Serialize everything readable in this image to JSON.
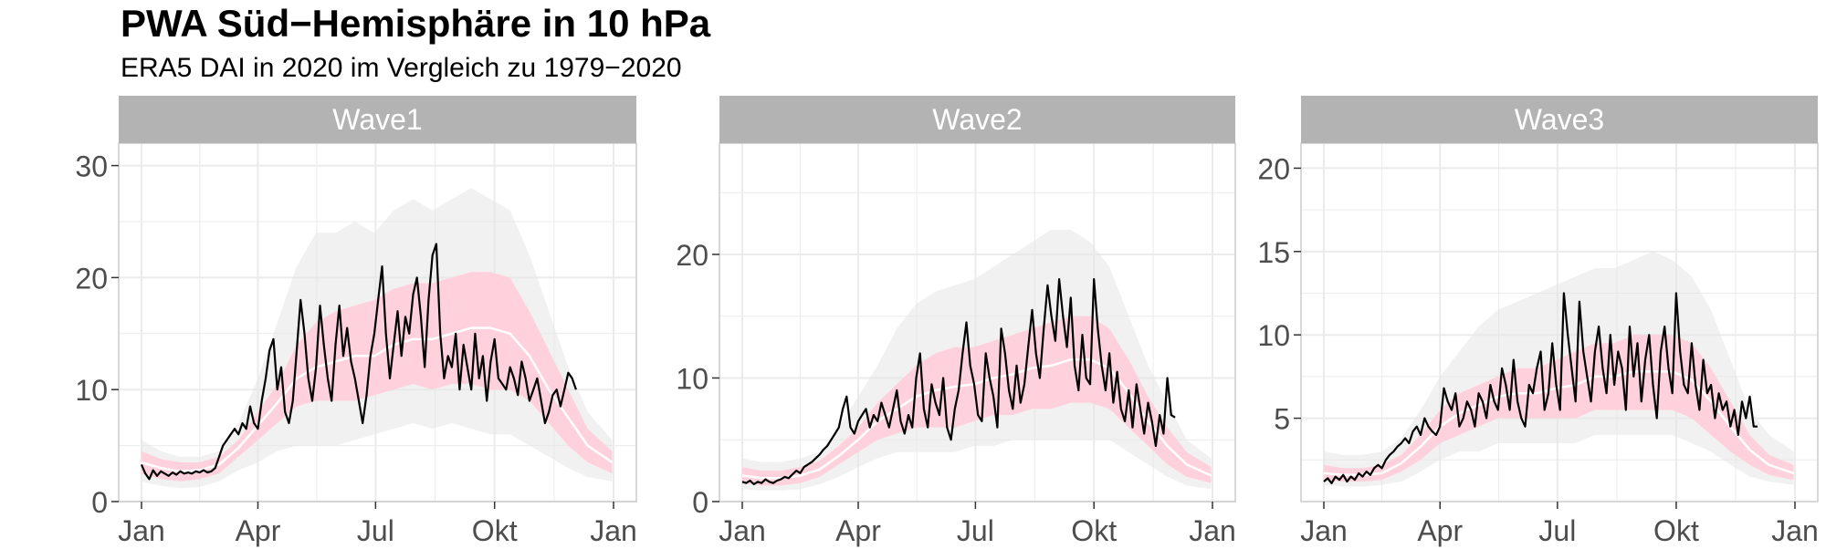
{
  "title": "PWA Süd−Hemisphäre in 10 hPa",
  "subtitle": "ERA5 DAI in 2020 im Vergleich zu 1979−2020",
  "colors": {
    "strip": "#b3b3b3",
    "strip_text": "#ffffff",
    "band": "#ffd1dc",
    "hist": "#e6e6e6",
    "mean": "#ffffff",
    "line_2020": "#000000",
    "grid": "#ebebeb",
    "panel_border": "#cccccc"
  },
  "chart_data": [
    {
      "type": "line",
      "facet": "Wave1",
      "x_ticks": [
        "Jan",
        "Apr",
        "Jul",
        "Okt",
        "Jan"
      ],
      "x_tick_days": [
        0,
        90,
        181,
        273,
        365
      ],
      "y_ticks": [
        0,
        10,
        20,
        30
      ],
      "ylim": [
        0,
        32
      ],
      "grid": true,
      "band_days": [
        0,
        15,
        30,
        45,
        60,
        75,
        90,
        105,
        120,
        135,
        150,
        165,
        180,
        195,
        210,
        225,
        240,
        255,
        270,
        285,
        300,
        315,
        330,
        345,
        364
      ],
      "band_lower": [
        2.5,
        2.0,
        1.8,
        2.0,
        2.5,
        4.0,
        5.5,
        7.0,
        8.5,
        9.0,
        9.0,
        9.0,
        9.5,
        10.0,
        10.5,
        10.0,
        10.5,
        10.5,
        10.0,
        10.0,
        9.0,
        7.0,
        5.0,
        3.5,
        2.5
      ],
      "band_upper": [
        4.5,
        3.8,
        3.5,
        3.5,
        4.0,
        5.5,
        8.0,
        10.5,
        14.0,
        16.0,
        17.0,
        17.5,
        18.0,
        19.0,
        19.5,
        19.5,
        20.0,
        20.5,
        20.5,
        20.0,
        17.0,
        13.5,
        10.0,
        6.5,
        4.5
      ],
      "mean": [
        3.5,
        3.0,
        2.7,
        2.8,
        3.3,
        4.8,
        6.8,
        8.8,
        11.0,
        12.0,
        12.5,
        13.0,
        13.0,
        14.0,
        14.5,
        14.5,
        15.0,
        15.5,
        15.5,
        15.0,
        13.0,
        10.0,
        7.5,
        5.0,
        3.5
      ],
      "hist_max": [
        5.5,
        4.5,
        4.0,
        4.0,
        4.5,
        7.0,
        11.0,
        16.0,
        21.0,
        24.0,
        24.0,
        25.0,
        24.0,
        26.0,
        27.0,
        26.0,
        27.0,
        28.0,
        27.0,
        26.0,
        22.0,
        17.0,
        12.0,
        8.0,
        5.5
      ],
      "hist_min": [
        1.8,
        1.4,
        1.2,
        1.3,
        1.8,
        2.8,
        3.5,
        4.5,
        5.0,
        5.0,
        5.0,
        5.5,
        6.0,
        6.5,
        7.0,
        6.5,
        7.0,
        6.5,
        6.0,
        6.0,
        5.0,
        4.0,
        3.0,
        2.2,
        1.8
      ],
      "series_2020": {
        "days": [
          0,
          3,
          6,
          9,
          12,
          15,
          18,
          21,
          24,
          27,
          30,
          33,
          36,
          39,
          42,
          45,
          48,
          51,
          54,
          57,
          60,
          63,
          66,
          69,
          72,
          75,
          78,
          81,
          84,
          87,
          90,
          93,
          96,
          99,
          102,
          105,
          108,
          111,
          114,
          117,
          120,
          123,
          126,
          129,
          132,
          135,
          138,
          141,
          144,
          147,
          150,
          153,
          156,
          159,
          162,
          165,
          168,
          171,
          174,
          177,
          180,
          183,
          186,
          189,
          192,
          195,
          198,
          201,
          204,
          207,
          210,
          213,
          216,
          219,
          222,
          225,
          228,
          231,
          234,
          237,
          240,
          243,
          246,
          249,
          252,
          255,
          258,
          261,
          264,
          267,
          270,
          273,
          276,
          279,
          282,
          285,
          288,
          291,
          294,
          297,
          300,
          303,
          306,
          309,
          312,
          315,
          318,
          321,
          324,
          327,
          330,
          333,
          336
        ],
        "values": [
          3.3,
          2.5,
          2.0,
          2.8,
          2.3,
          2.7,
          2.5,
          2.3,
          2.6,
          2.4,
          2.7,
          2.5,
          2.6,
          2.5,
          2.7,
          2.6,
          2.8,
          2.6,
          2.7,
          3.0,
          4.0,
          5.0,
          5.5,
          6.0,
          6.5,
          6.0,
          7.0,
          6.5,
          8.5,
          7.0,
          6.5,
          9.0,
          11.0,
          13.5,
          14.5,
          10.0,
          12.0,
          8.0,
          7.0,
          9.0,
          13.5,
          18.0,
          15.0,
          11.0,
          9.0,
          12.0,
          17.5,
          14.0,
          11.0,
          9.0,
          14.0,
          17.5,
          13.0,
          15.5,
          12.5,
          11.0,
          9.0,
          7.0,
          9.5,
          13.0,
          15.0,
          18.0,
          21.0,
          15.0,
          11.0,
          14.0,
          17.0,
          13.0,
          16.5,
          15.0,
          18.5,
          20.0,
          16.5,
          12.0,
          18.0,
          22.0,
          23.0,
          15.0,
          11.0,
          13.0,
          12.0,
          15.0,
          10.0,
          14.0,
          12.0,
          10.0,
          15.0,
          11.0,
          13.0,
          9.0,
          12.5,
          14.5,
          11.0,
          10.5,
          10.0,
          12.0,
          11.0,
          9.5,
          12.5,
          11.0,
          9.0,
          10.0,
          11.0,
          9.0,
          7.0,
          8.0,
          9.5,
          10.0,
          8.5,
          10.0,
          11.5,
          11.0,
          10.0
        ]
      }
    },
    {
      "type": "line",
      "facet": "Wave2",
      "x_ticks": [
        "Jan",
        "Apr",
        "Jul",
        "Okt",
        "Jan"
      ],
      "x_tick_days": [
        0,
        90,
        181,
        273,
        365
      ],
      "y_ticks": [
        0,
        10,
        20
      ],
      "ylim": [
        0,
        29
      ],
      "grid": true,
      "band_days": [
        0,
        15,
        30,
        45,
        60,
        75,
        90,
        105,
        120,
        135,
        150,
        165,
        180,
        195,
        210,
        225,
        240,
        255,
        270,
        285,
        300,
        315,
        330,
        345,
        364
      ],
      "band_lower": [
        1.5,
        1.3,
        1.3,
        1.5,
        2.0,
        3.0,
        4.0,
        5.0,
        5.5,
        6.0,
        6.0,
        6.0,
        6.5,
        7.0,
        7.0,
        7.5,
        7.5,
        8.0,
        8.0,
        7.5,
        6.0,
        4.5,
        3.0,
        2.0,
        1.5
      ],
      "band_upper": [
        2.8,
        2.5,
        2.5,
        2.8,
        3.3,
        4.5,
        6.0,
        8.0,
        9.5,
        11.0,
        12.0,
        12.5,
        12.5,
        13.0,
        13.5,
        14.0,
        14.5,
        15.0,
        15.0,
        14.0,
        11.5,
        8.5,
        6.0,
        4.0,
        2.8
      ],
      "mean": [
        2.1,
        1.9,
        1.9,
        2.1,
        2.6,
        3.7,
        5.0,
        6.5,
        7.5,
        8.5,
        9.0,
        9.3,
        9.5,
        10.0,
        10.3,
        10.8,
        11.0,
        11.5,
        11.5,
        10.8,
        8.8,
        6.5,
        4.5,
        3.0,
        2.1
      ],
      "hist_max": [
        3.5,
        3.2,
        3.2,
        3.5,
        4.0,
        6.0,
        8.5,
        11.0,
        14.0,
        16.0,
        17.0,
        17.5,
        18.0,
        19.0,
        20.0,
        21.0,
        22.0,
        22.0,
        21.0,
        19.0,
        15.0,
        11.0,
        8.0,
        5.0,
        3.5
      ],
      "hist_min": [
        1.0,
        0.9,
        0.9,
        1.0,
        1.4,
        2.0,
        2.8,
        3.5,
        4.0,
        4.0,
        4.0,
        4.0,
        4.5,
        4.5,
        5.0,
        5.0,
        5.0,
        5.0,
        5.0,
        5.0,
        4.0,
        3.0,
        2.0,
        1.3,
        1.0
      ],
      "series_2020": {
        "days": [
          0,
          3,
          6,
          9,
          12,
          15,
          18,
          21,
          24,
          27,
          30,
          33,
          36,
          39,
          42,
          45,
          48,
          51,
          54,
          57,
          60,
          63,
          66,
          69,
          72,
          75,
          78,
          81,
          84,
          87,
          90,
          93,
          96,
          99,
          102,
          105,
          108,
          111,
          114,
          117,
          120,
          123,
          126,
          129,
          132,
          135,
          138,
          141,
          144,
          147,
          150,
          153,
          156,
          159,
          162,
          165,
          168,
          171,
          174,
          177,
          180,
          183,
          186,
          189,
          192,
          195,
          198,
          201,
          204,
          207,
          210,
          213,
          216,
          219,
          222,
          225,
          228,
          231,
          234,
          237,
          240,
          243,
          246,
          249,
          252,
          255,
          258,
          261,
          264,
          267,
          270,
          273,
          276,
          279,
          282,
          285,
          288,
          291,
          294,
          297,
          300,
          303,
          306,
          309,
          312,
          315,
          318,
          321,
          324,
          327,
          330,
          333,
          336
        ],
        "values": [
          1.6,
          1.5,
          1.7,
          1.4,
          1.6,
          1.5,
          1.8,
          1.6,
          1.5,
          1.7,
          1.8,
          2.0,
          1.9,
          2.2,
          2.5,
          2.3,
          2.8,
          3.0,
          3.2,
          3.5,
          3.8,
          4.2,
          4.5,
          5.0,
          5.5,
          6.0,
          7.5,
          8.5,
          6.0,
          5.5,
          6.5,
          7.0,
          7.5,
          6.0,
          7.0,
          6.5,
          8.0,
          7.0,
          6.0,
          7.5,
          9.0,
          6.5,
          5.5,
          7.0,
          6.0,
          10.0,
          12.0,
          7.5,
          6.0,
          9.5,
          8.0,
          7.0,
          10.0,
          6.0,
          5.0,
          7.5,
          9.0,
          12.0,
          14.5,
          11.0,
          9.5,
          7.0,
          6.5,
          12.0,
          10.0,
          8.5,
          6.0,
          14.0,
          12.0,
          9.0,
          7.5,
          11.0,
          8.0,
          9.5,
          12.5,
          15.5,
          12.0,
          10.0,
          14.0,
          17.5,
          15.0,
          13.0,
          18.0,
          15.0,
          12.5,
          16.5,
          11.0,
          9.0,
          13.5,
          10.0,
          9.5,
          18.0,
          14.0,
          11.0,
          9.0,
          12.0,
          8.0,
          10.5,
          7.5,
          6.5,
          9.0,
          6.0,
          9.5,
          7.5,
          5.5,
          8.0,
          6.5,
          4.5,
          7.0,
          5.5,
          10.0,
          7.0,
          6.8
        ]
      }
    },
    {
      "type": "line",
      "facet": "Wave3",
      "x_ticks": [
        "Jan",
        "Apr",
        "Jul",
        "Okt",
        "Jan"
      ],
      "x_tick_days": [
        0,
        90,
        181,
        273,
        365
      ],
      "y_ticks": [
        5,
        10,
        15,
        20
      ],
      "ylim": [
        0,
        21.5
      ],
      "grid": true,
      "band_days": [
        0,
        15,
        30,
        45,
        60,
        75,
        90,
        105,
        120,
        135,
        150,
        165,
        180,
        195,
        210,
        225,
        240,
        255,
        270,
        285,
        300,
        315,
        330,
        345,
        364
      ],
      "band_lower": [
        1.3,
        1.2,
        1.2,
        1.3,
        1.8,
        2.5,
        3.5,
        4.0,
        4.5,
        5.0,
        5.0,
        5.0,
        5.0,
        5.0,
        5.5,
        5.5,
        5.5,
        5.5,
        5.5,
        5.0,
        4.0,
        3.0,
        2.2,
        1.6,
        1.3
      ],
      "band_upper": [
        2.2,
        2.0,
        2.0,
        2.2,
        2.8,
        4.0,
        5.5,
        6.5,
        7.0,
        7.5,
        8.0,
        8.0,
        8.5,
        9.0,
        9.5,
        9.5,
        10.0,
        10.0,
        10.0,
        9.5,
        8.0,
        6.0,
        4.0,
        2.8,
        2.2
      ],
      "mean": [
        1.7,
        1.6,
        1.6,
        1.7,
        2.3,
        3.3,
        4.5,
        5.3,
        5.8,
        6.3,
        6.5,
        6.5,
        6.8,
        7.0,
        7.5,
        7.5,
        7.8,
        7.8,
        7.8,
        7.3,
        6.0,
        4.5,
        3.1,
        2.2,
        1.7
      ],
      "hist_max": [
        3.0,
        2.8,
        2.8,
        3.0,
        3.8,
        5.5,
        7.5,
        9.0,
        10.5,
        11.5,
        12.0,
        12.5,
        13.0,
        13.5,
        14.0,
        14.0,
        14.5,
        15.0,
        14.5,
        13.5,
        11.5,
        8.5,
        5.5,
        4.0,
        3.0
      ],
      "hist_min": [
        1.0,
        0.9,
        0.9,
        1.0,
        1.2,
        1.8,
        2.5,
        3.0,
        3.0,
        3.5,
        3.5,
        3.5,
        3.5,
        3.5,
        4.0,
        4.0,
        4.0,
        4.0,
        4.0,
        3.5,
        3.0,
        2.2,
        1.5,
        1.2,
        1.0
      ],
      "series_2020": {
        "days": [
          0,
          3,
          6,
          9,
          12,
          15,
          18,
          21,
          24,
          27,
          30,
          33,
          36,
          39,
          42,
          45,
          48,
          51,
          54,
          57,
          60,
          63,
          66,
          69,
          72,
          75,
          78,
          81,
          84,
          87,
          90,
          93,
          96,
          99,
          102,
          105,
          108,
          111,
          114,
          117,
          120,
          123,
          126,
          129,
          132,
          135,
          138,
          141,
          144,
          147,
          150,
          153,
          156,
          159,
          162,
          165,
          168,
          171,
          174,
          177,
          180,
          183,
          186,
          189,
          192,
          195,
          198,
          201,
          204,
          207,
          210,
          213,
          216,
          219,
          222,
          225,
          228,
          231,
          234,
          237,
          240,
          243,
          246,
          249,
          252,
          255,
          258,
          261,
          264,
          267,
          270,
          273,
          276,
          279,
          282,
          285,
          288,
          291,
          294,
          297,
          300,
          303,
          306,
          309,
          312,
          315,
          318,
          321,
          324,
          327,
          330,
          333,
          336
        ],
        "values": [
          1.2,
          1.4,
          1.1,
          1.5,
          1.3,
          1.6,
          1.2,
          1.5,
          1.3,
          1.7,
          1.5,
          1.8,
          1.6,
          2.0,
          2.2,
          2.0,
          2.5,
          2.8,
          3.0,
          3.3,
          3.5,
          3.8,
          3.5,
          4.2,
          4.5,
          4.0,
          5.0,
          4.5,
          4.2,
          4.0,
          4.5,
          6.8,
          6.0,
          5.5,
          6.5,
          4.5,
          5.0,
          6.0,
          5.5,
          4.5,
          6.5,
          6.0,
          5.0,
          7.0,
          6.0,
          5.5,
          8.0,
          7.0,
          5.5,
          8.5,
          6.0,
          5.0,
          4.5,
          7.0,
          6.5,
          8.0,
          9.0,
          5.5,
          6.5,
          9.5,
          7.0,
          5.5,
          12.5,
          10.0,
          8.0,
          6.0,
          12.0,
          9.0,
          7.5,
          6.0,
          9.0,
          10.5,
          8.0,
          6.5,
          10.0,
          7.0,
          9.0,
          8.0,
          5.5,
          10.5,
          7.5,
          9.5,
          6.0,
          8.5,
          10.0,
          7.0,
          5.0,
          9.0,
          10.5,
          8.0,
          6.5,
          12.5,
          9.0,
          7.0,
          6.5,
          9.5,
          7.0,
          5.5,
          8.5,
          6.5,
          7.0,
          5.0,
          6.5,
          5.5,
          6.0,
          4.5,
          5.5,
          4.0,
          6.0,
          5.0,
          6.3,
          4.5,
          4.5
        ]
      }
    }
  ]
}
